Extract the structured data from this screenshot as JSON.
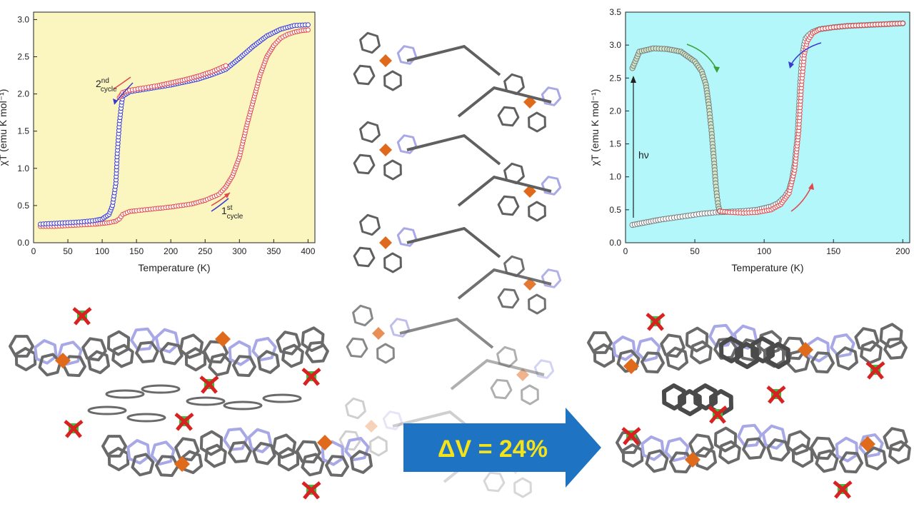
{
  "colors": {
    "left_bg": "#fbf6c0",
    "right_bg": "#b4f7fb",
    "red": "#e0484c",
    "blue": "#3a3ad0",
    "green_marker": "#cfe8c8",
    "arrow": "#1f73c3",
    "arrow_text": "#f4e21a",
    "bond_gray": "#707070",
    "nitrogen": "#a8a8e6",
    "iron": "#e06a1c",
    "chlorine": "#3ac23a",
    "oxygen": "#d82222"
  },
  "arrow": {
    "text": "ΔV = 24%"
  },
  "annotations": {
    "cycle2": {
      "main": "2",
      "sup": "nd",
      "sub": "cycle"
    },
    "cycle1": {
      "main": "1",
      "sup": "st",
      "sub": "cycle"
    },
    "hv": "hν"
  },
  "chart_data": [
    {
      "type": "scatter",
      "xlabel": "Temperature (K)",
      "ylabel": "χT (emu K mol⁻¹)",
      "xlim": [
        0,
        410
      ],
      "ylim": [
        0,
        3.1
      ],
      "xticks": [
        0,
        50,
        100,
        150,
        200,
        250,
        300,
        350,
        400
      ],
      "yticks": [
        0.0,
        0.5,
        1.0,
        1.5,
        2.0,
        2.5,
        3.0
      ],
      "series": [
        {
          "color": "red",
          "x": [
            10,
            30,
            50,
            70,
            90,
            100,
            110,
            120,
            125,
            130,
            140,
            150,
            170,
            200,
            230,
            250,
            270,
            280,
            290,
            300,
            310,
            320,
            330,
            340,
            350,
            360,
            370,
            380,
            390,
            400
          ],
          "y": [
            0.22,
            0.22,
            0.23,
            0.24,
            0.25,
            0.26,
            0.27,
            0.29,
            0.32,
            0.38,
            0.42,
            0.43,
            0.45,
            0.48,
            0.52,
            0.57,
            0.65,
            0.75,
            0.9,
            1.15,
            1.55,
            1.9,
            2.25,
            2.5,
            2.65,
            2.75,
            2.8,
            2.83,
            2.85,
            2.86
          ]
        },
        {
          "color": "blue",
          "x": [
            10,
            30,
            50,
            70,
            90,
            100,
            110,
            115,
            120,
            122,
            125,
            128,
            130,
            140,
            160,
            180,
            200,
            220,
            240,
            260,
            280,
            300,
            320,
            340,
            360,
            380,
            400
          ],
          "y": [
            0.25,
            0.26,
            0.27,
            0.28,
            0.3,
            0.32,
            0.38,
            0.5,
            0.8,
            1.2,
            1.6,
            1.85,
            1.97,
            2.03,
            2.06,
            2.09,
            2.12,
            2.16,
            2.2,
            2.26,
            2.33,
            2.48,
            2.64,
            2.78,
            2.87,
            2.92,
            2.93
          ]
        },
        {
          "color": "red",
          "x": [
            125,
            130,
            140,
            160,
            180,
            200,
            220,
            240,
            260,
            280
          ],
          "y": [
            1.95,
            2.02,
            2.05,
            2.08,
            2.11,
            2.15,
            2.19,
            2.24,
            2.3,
            2.38
          ]
        }
      ]
    },
    {
      "type": "scatter",
      "xlabel": "Temperature (K)",
      "ylabel": "χT (emu K mol⁻¹)",
      "xlim": [
        0,
        205
      ],
      "ylim": [
        0,
        3.5
      ],
      "xticks": [
        0,
        50,
        100,
        150,
        200
      ],
      "yticks": [
        0.0,
        0.5,
        1.0,
        1.5,
        2.0,
        2.5,
        3.0,
        3.5
      ],
      "series": [
        {
          "color": "white",
          "x": [
            5,
            15,
            25,
            35,
            45,
            55,
            65,
            75,
            85,
            95,
            105,
            110,
            115,
            118,
            120,
            122,
            124,
            125,
            126,
            127,
            128,
            129,
            130,
            132,
            135,
            140,
            150,
            160,
            170,
            180,
            190,
            200
          ],
          "y": [
            0.27,
            0.31,
            0.35,
            0.38,
            0.41,
            0.44,
            0.46,
            0.47,
            0.48,
            0.5,
            0.55,
            0.6,
            0.7,
            0.8,
            0.95,
            1.2,
            1.6,
            2.0,
            2.4,
            2.7,
            2.9,
            3.02,
            3.1,
            3.15,
            3.2,
            3.24,
            3.27,
            3.29,
            3.3,
            3.31,
            3.32,
            3.33
          ]
        },
        {
          "color": "green",
          "x": [
            5,
            10,
            20,
            30,
            40,
            50,
            55,
            58,
            60,
            62,
            64,
            65,
            66,
            67,
            68
          ],
          "y": [
            2.65,
            2.9,
            2.95,
            2.94,
            2.9,
            2.75,
            2.6,
            2.4,
            2.1,
            1.7,
            1.2,
            0.9,
            0.7,
            0.55,
            0.48
          ]
        },
        {
          "color": "red",
          "x": [
            68,
            75,
            85,
            95,
            105,
            112,
            118,
            122,
            125,
            127,
            129,
            131,
            135,
            140,
            150,
            160,
            170,
            180,
            190,
            200
          ],
          "y": [
            0.48,
            0.46,
            0.45,
            0.46,
            0.5,
            0.58,
            0.75,
            1.1,
            1.7,
            2.4,
            2.85,
            3.05,
            3.18,
            3.24,
            3.27,
            3.29,
            3.3,
            3.31,
            3.32,
            3.33
          ]
        }
      ]
    }
  ]
}
